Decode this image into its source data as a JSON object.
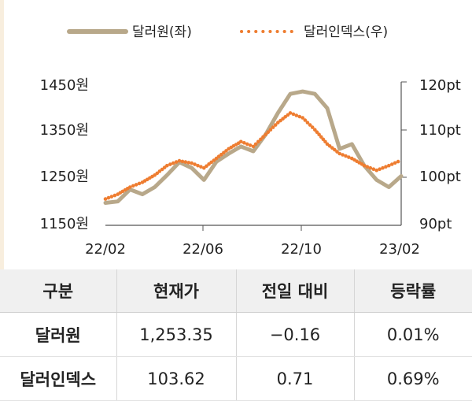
{
  "chart_data": {
    "type": "line",
    "legend": [
      {
        "name": "달러원(좌)",
        "color": "#b8a88a",
        "style": "solid"
      },
      {
        "name": "달러인덱스(우)",
        "color": "#ee7d31",
        "style": "dotted"
      }
    ],
    "x_ticks": [
      "22/02",
      "22/06",
      "22/10",
      "23/02"
    ],
    "y_left": {
      "ticks": [
        "1450원",
        "1350원",
        "1250원",
        "1150원"
      ],
      "range": [
        1150,
        1450
      ]
    },
    "y_right": {
      "ticks": [
        "120pt",
        "110pt",
        "100pt",
        "90pt"
      ],
      "range": [
        90,
        120
      ]
    },
    "series": [
      {
        "name": "달러원(좌)",
        "axis": "left",
        "x": [
          "22/02",
          "22/03",
          "22/03",
          "22/04",
          "22/04",
          "22/05",
          "22/05",
          "22/06",
          "22/06",
          "22/07",
          "22/07",
          "22/08",
          "22/08",
          "22/09",
          "22/09",
          "22/10",
          "22/10",
          "22/11",
          "22/11",
          "22/12",
          "22/12",
          "23/01",
          "23/01",
          "23/02",
          "23/02"
        ],
        "values": [
          1197,
          1200,
          1225,
          1215,
          1230,
          1255,
          1282,
          1270,
          1245,
          1283,
          1300,
          1315,
          1305,
          1340,
          1385,
          1425,
          1430,
          1425,
          1395,
          1310,
          1320,
          1275,
          1245,
          1230,
          1253
        ]
      },
      {
        "name": "달러인덱스(우)",
        "axis": "right",
        "x": [
          "22/02",
          "22/03",
          "22/03",
          "22/04",
          "22/04",
          "22/05",
          "22/05",
          "22/06",
          "22/06",
          "22/07",
          "22/07",
          "22/08",
          "22/08",
          "22/09",
          "22/09",
          "22/10",
          "22/10",
          "22/11",
          "22/11",
          "22/12",
          "22/12",
          "23/01",
          "23/01",
          "23/02",
          "23/02"
        ],
        "values": [
          95.5,
          96.5,
          98.0,
          99.0,
          100.5,
          102.5,
          103.5,
          103.0,
          102.0,
          104.0,
          106.0,
          107.5,
          106.5,
          109.0,
          111.5,
          113.5,
          112.5,
          110.0,
          107.0,
          105.0,
          104.0,
          102.5,
          101.5,
          102.5,
          103.62
        ]
      }
    ]
  },
  "table": {
    "headers": [
      "구분",
      "현재가",
      "전일 대비",
      "등락률"
    ],
    "rows": [
      [
        "달러원",
        "1,253.35",
        "−0.16",
        "0.01%"
      ],
      [
        "달러인덱스",
        "103.62",
        "0.71",
        "0.69%"
      ]
    ]
  }
}
